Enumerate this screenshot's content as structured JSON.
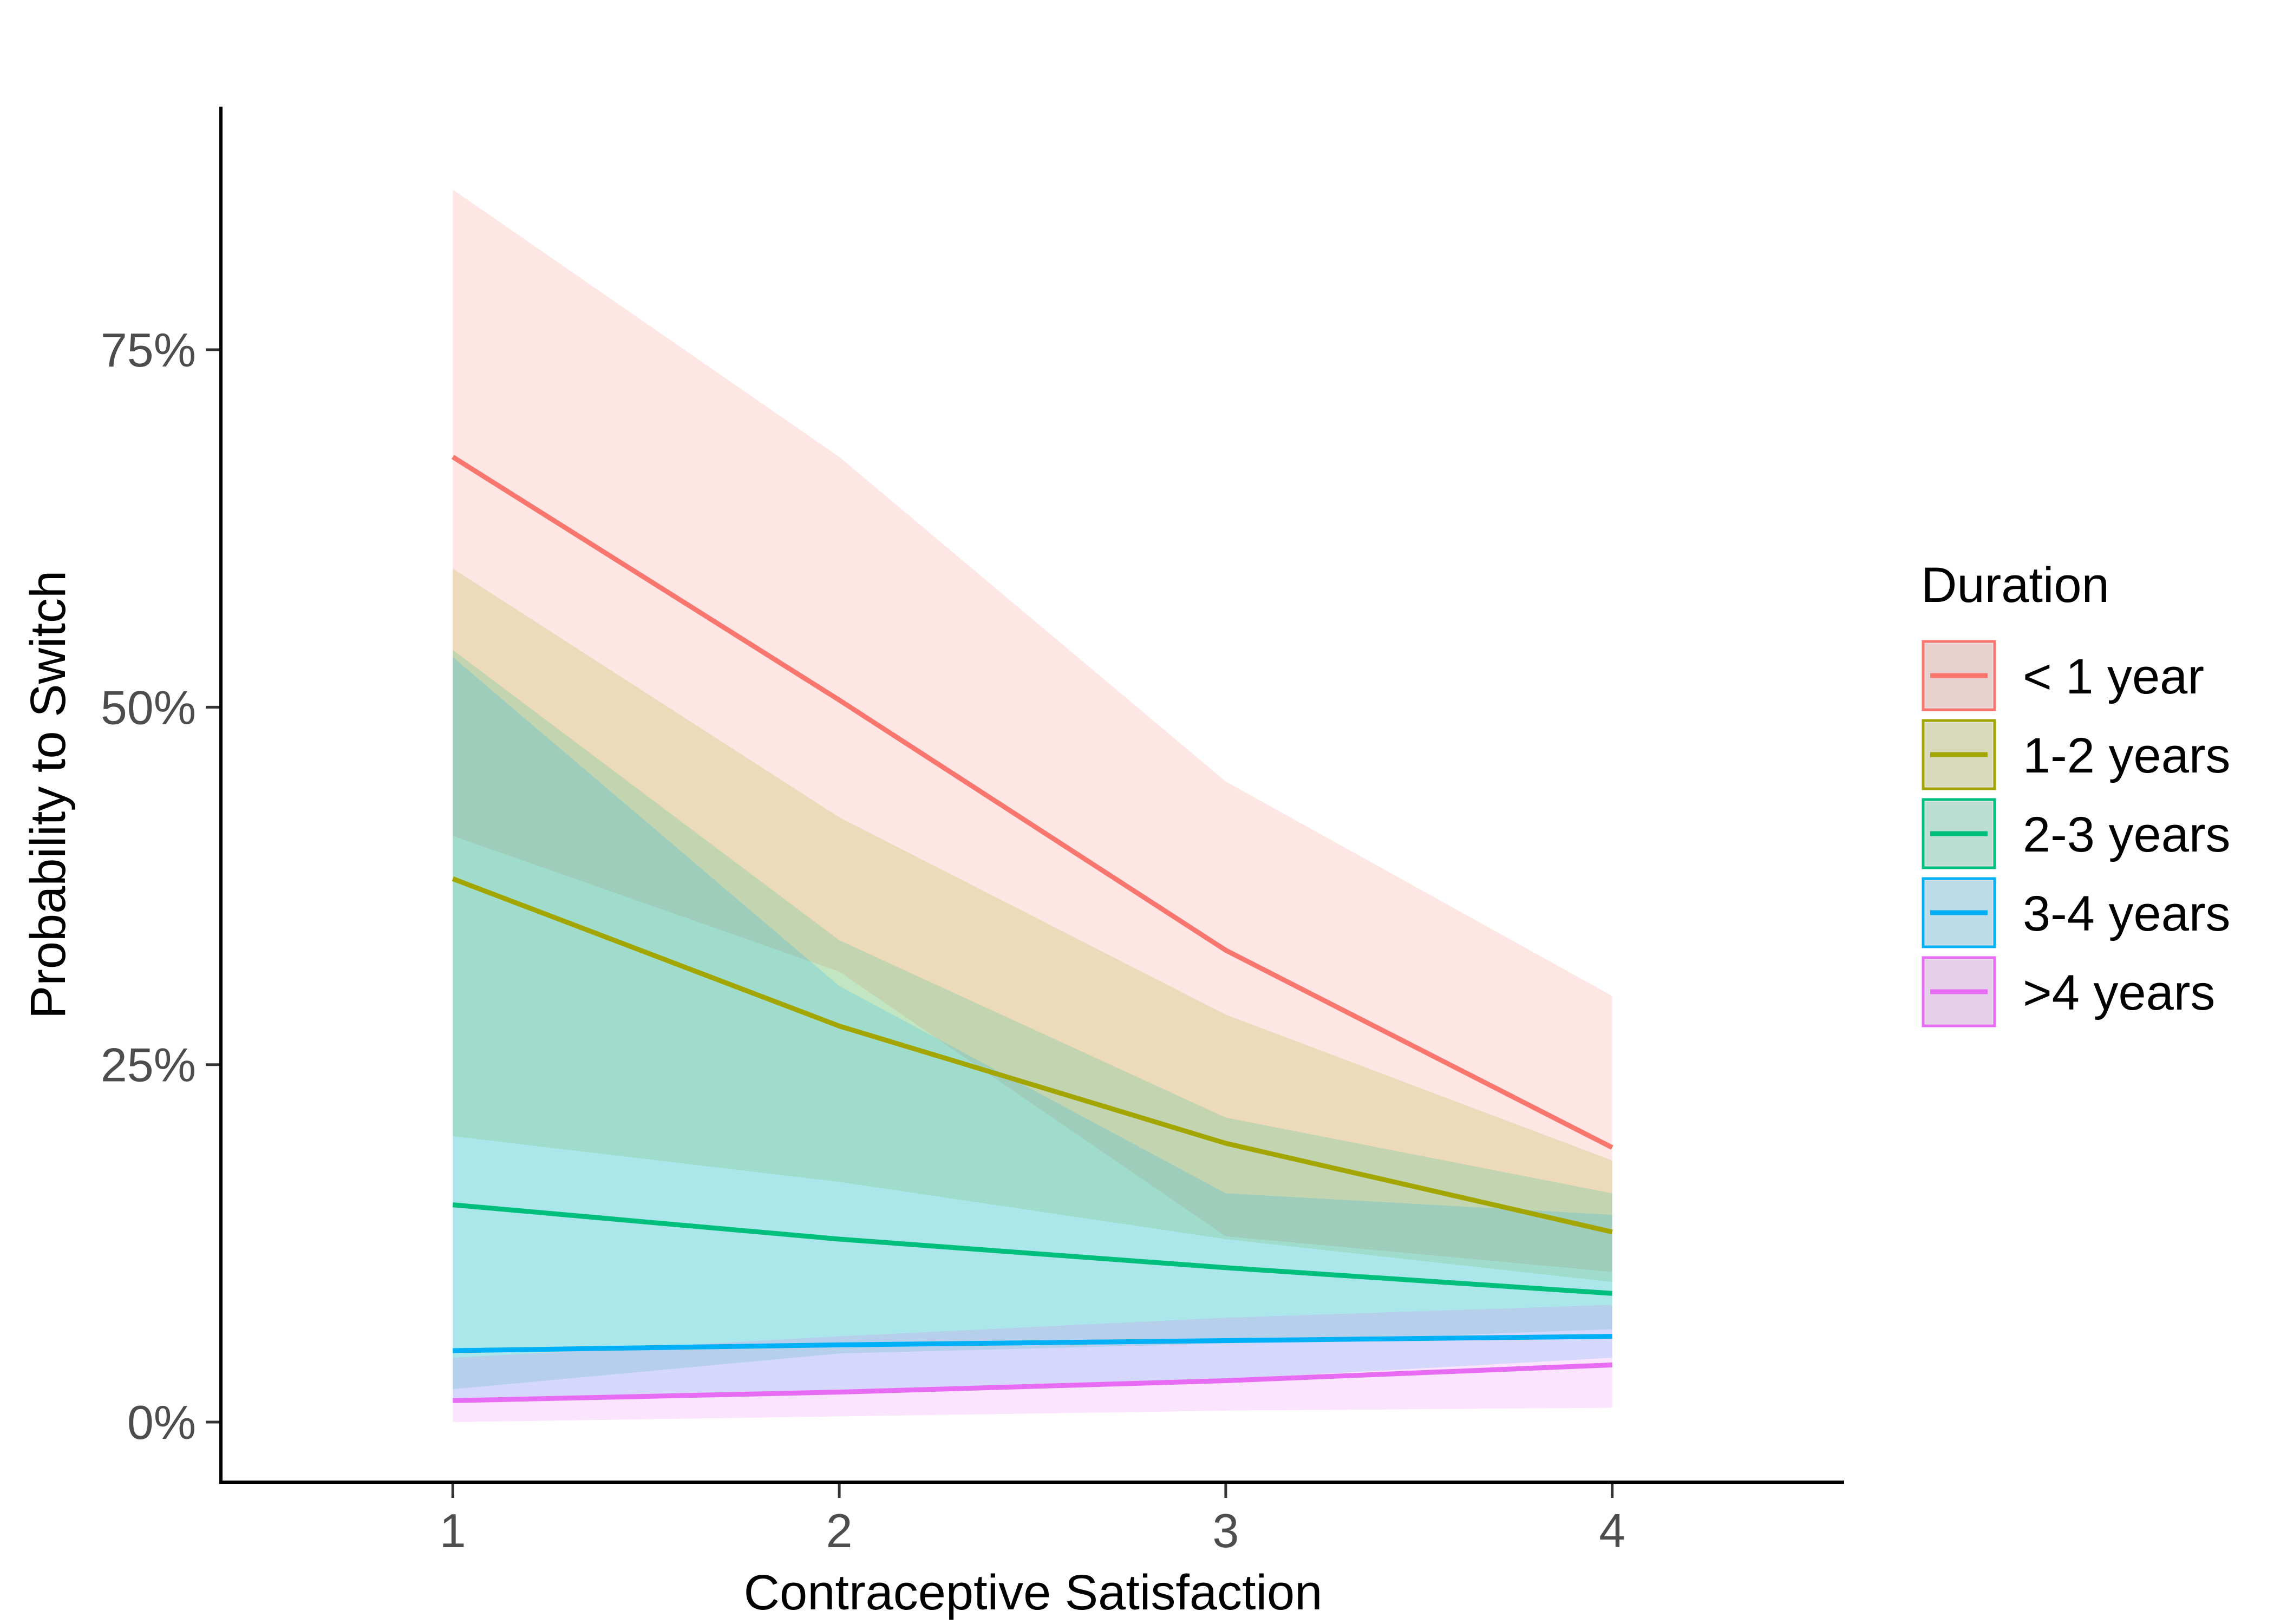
{
  "chart_data": {
    "type": "line",
    "xlabel": "Contraceptive Satisfaction",
    "ylabel": "Probability to Switch",
    "x": [
      1,
      2,
      3,
      4
    ],
    "xlim": [
      0.4,
      4.6
    ],
    "ylim": [
      -0.042,
      0.92
    ],
    "x_ticks": [
      {
        "value": 1,
        "label": "1"
      },
      {
        "value": 2,
        "label": "2"
      },
      {
        "value": 3,
        "label": "3"
      },
      {
        "value": 4,
        "label": "4"
      }
    ],
    "y_ticks": [
      {
        "value": 0,
        "label": "0%"
      },
      {
        "value": 0.25,
        "label": "25%"
      },
      {
        "value": 0.5,
        "label": "50%"
      },
      {
        "value": 0.75,
        "label": "75%"
      }
    ],
    "legend": {
      "title": "Duration",
      "position": "right"
    },
    "grid": false,
    "series": [
      {
        "name": "< 1 year",
        "color": "#F8766D",
        "values": [
          0.675,
          0.505,
          0.33,
          0.192
        ],
        "lower": [
          0.41,
          0.315,
          0.13,
          0.105
        ],
        "upper": [
          0.862,
          0.675,
          0.448,
          0.298
        ]
      },
      {
        "name": "1-2 years",
        "color": "#A3A500",
        "values": [
          0.38,
          0.277,
          0.195,
          0.133
        ],
        "lower": [
          0.2,
          0.168,
          0.128,
          0.098
        ],
        "upper": [
          0.597,
          0.423,
          0.285,
          0.183
        ]
      },
      {
        "name": "2-3 years",
        "color": "#00BF7D",
        "values": [
          0.152,
          0.128,
          0.108,
          0.09
        ],
        "lower": [
          0.023,
          0.048,
          0.055,
          0.065
        ],
        "upper": [
          0.54,
          0.337,
          0.213,
          0.16
        ]
      },
      {
        "name": "3-4 years",
        "color": "#00B0F6",
        "values": [
          0.05,
          0.054,
          0.057,
          0.06
        ],
        "lower": [
          0.015,
          0.02,
          0.03,
          0.045
        ],
        "upper": [
          0.535,
          0.305,
          0.16,
          0.145
        ]
      },
      {
        "name": ">4 years",
        "color": "#E76BF3",
        "values": [
          0.015,
          0.021,
          0.029,
          0.04
        ],
        "lower": [
          0.0,
          0.004,
          0.008,
          0.01
        ],
        "upper": [
          0.045,
          0.06,
          0.073,
          0.082
        ]
      }
    ]
  }
}
